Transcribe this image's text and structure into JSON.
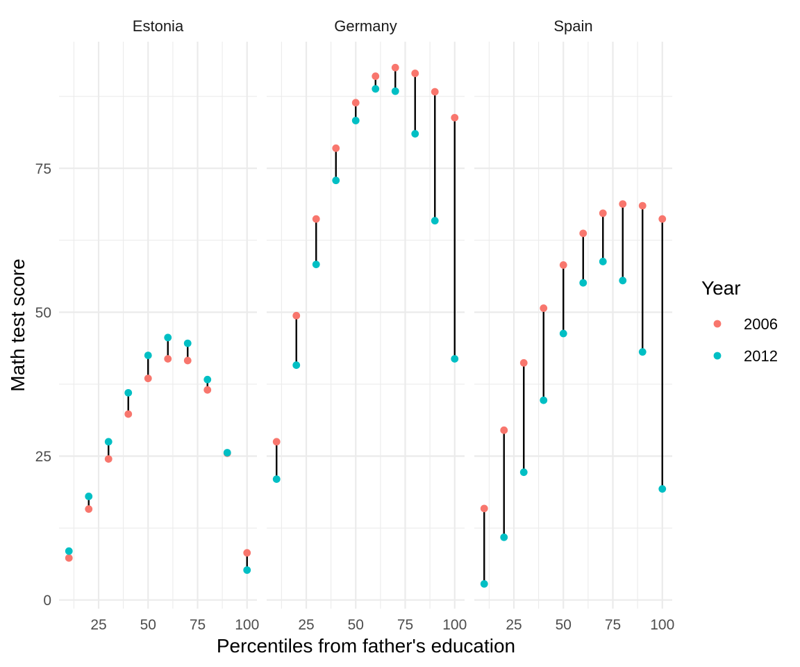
{
  "chart_data": {
    "type": "scatter",
    "facets": [
      "Estonia",
      "Germany",
      "Spain"
    ],
    "xlabel": "Percentiles from father's education",
    "ylabel": "Math test score",
    "xlim": [
      5,
      105
    ],
    "ylim": [
      -1.5,
      97
    ],
    "x_ticks": [
      "25",
      "50",
      "75",
      "100"
    ],
    "y_ticks": [
      "0",
      "25",
      "50",
      "75"
    ],
    "grid": true,
    "legend": {
      "title": "Year",
      "position": "right",
      "entries": [
        {
          "label": "2006",
          "color": "#F8766D"
        },
        {
          "label": "2012",
          "color": "#00BFC4"
        }
      ]
    },
    "x": [
      10,
      20,
      30,
      40,
      50,
      60,
      70,
      80,
      90,
      100
    ],
    "panels": [
      {
        "facet": "Estonia",
        "series": [
          {
            "name": "2006",
            "values": [
              7.3,
              15.8,
              24.5,
              32.3,
              38.5,
              41.9,
              41.6,
              36.5,
              25.5,
              8.2
            ]
          },
          {
            "name": "2012",
            "values": [
              8.5,
              18.0,
              27.5,
              36.0,
              42.5,
              45.6,
              44.6,
              38.3,
              25.6,
              5.2
            ]
          }
        ]
      },
      {
        "facet": "Germany",
        "series": [
          {
            "name": "2006",
            "values": [
              27.5,
              49.4,
              66.2,
              78.5,
              86.4,
              91.0,
              92.5,
              91.5,
              88.3,
              83.8
            ]
          },
          {
            "name": "2012",
            "values": [
              21.0,
              40.8,
              58.3,
              72.9,
              83.3,
              88.8,
              88.4,
              81.0,
              65.9,
              41.9
            ]
          }
        ]
      },
      {
        "facet": "Spain",
        "series": [
          {
            "name": "2006",
            "values": [
              15.9,
              29.5,
              41.2,
              50.7,
              58.2,
              63.7,
              67.2,
              68.8,
              68.5,
              66.2
            ]
          },
          {
            "name": "2012",
            "values": [
              2.8,
              10.9,
              22.2,
              34.7,
              46.3,
              55.1,
              58.8,
              55.5,
              43.1,
              19.3
            ]
          }
        ]
      }
    ]
  }
}
